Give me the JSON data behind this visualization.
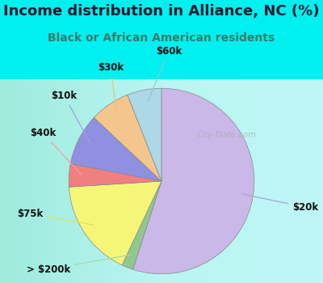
{
  "title": "Income distribution in Alliance, NC (%)",
  "subtitle": "Black or African American residents",
  "title_color": "#1a1a2e",
  "subtitle_color": "#3a7a6a",
  "background_color": "#00efef",
  "chart_bg_top": "#d8f0e8",
  "chart_bg_bottom": "#e8f8f0",
  "watermark": "City-Data.com",
  "labels": [
    "$20k",
    "> $200k",
    "$75k",
    "$40k",
    "$10k",
    "$30k",
    "$60k"
  ],
  "sizes": [
    55,
    2,
    17,
    4,
    9,
    7,
    6
  ],
  "colors": [
    "#c9b8e8",
    "#90c890",
    "#f5f577",
    "#f08080",
    "#9090e0",
    "#f4c68d",
    "#add8e6"
  ],
  "startangle": 90,
  "label_fontsize": 8.5,
  "title_fontsize": 13,
  "subtitle_fontsize": 10
}
